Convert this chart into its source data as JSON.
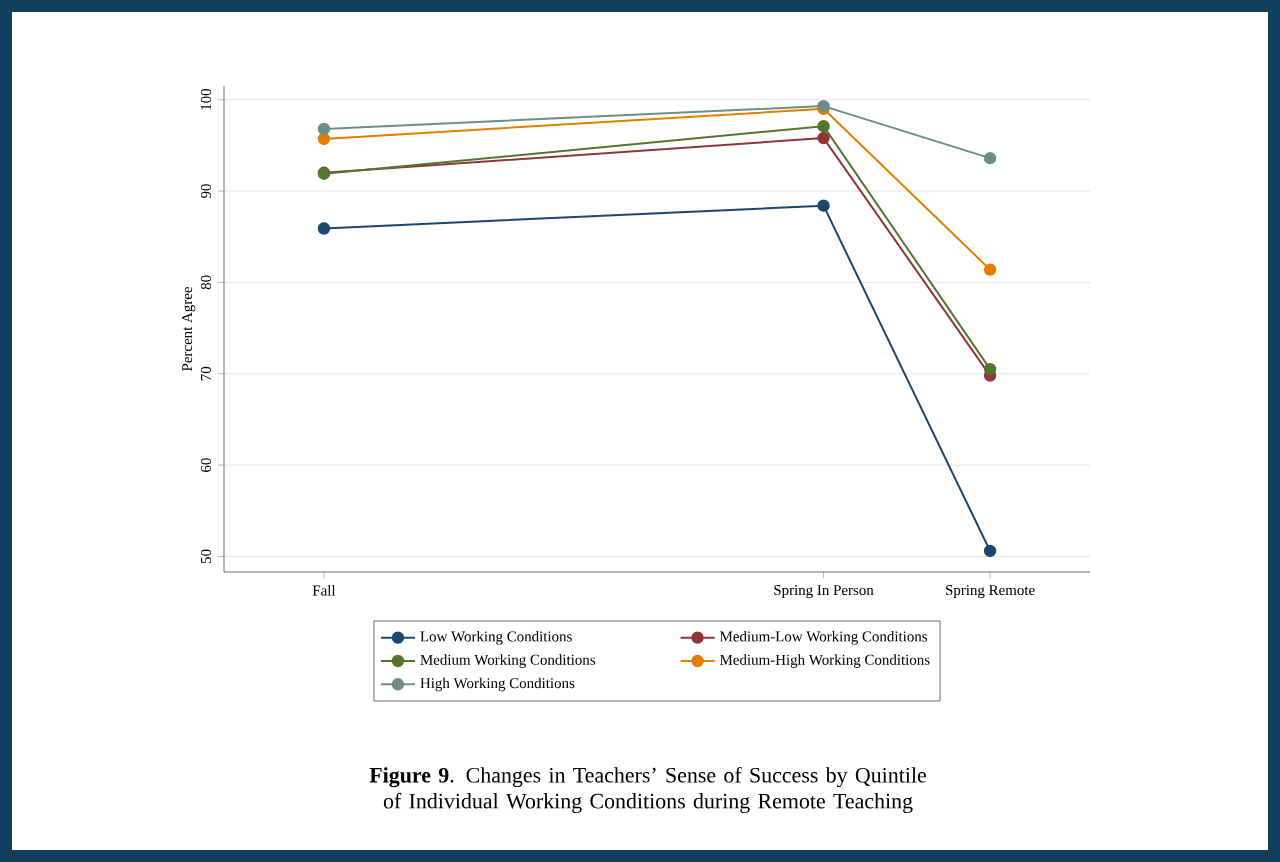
{
  "chart_data": {
    "type": "line",
    "ylabel": "Percent Agree",
    "categories": [
      "Fall",
      null,
      null,
      "Spring In Person",
      "Spring Remote"
    ],
    "ylim": [
      48.3,
      101.5
    ],
    "yticks": [
      50,
      60,
      70,
      80,
      90,
      100
    ],
    "grid": "y",
    "marker": "circle",
    "line_style": "solid",
    "legend": "bottom",
    "series": [
      {
        "name": "Low Working Conditions",
        "color": "#1a476f",
        "values": [
          85.9,
          null,
          null,
          88.4,
          50.6
        ]
      },
      {
        "name": "Medium-Low Working Conditions",
        "color": "#90353b",
        "values": [
          92.0,
          null,
          null,
          95.8,
          69.8
        ]
      },
      {
        "name": "Medium Working Conditions",
        "color": "#55752f",
        "values": [
          91.9,
          null,
          null,
          97.1,
          70.5
        ]
      },
      {
        "name": "Medium-High Working Conditions",
        "color": "#e37e00",
        "values": [
          95.7,
          null,
          null,
          99.0,
          81.4
        ]
      },
      {
        "name": "High Working Conditions",
        "color": "#6e8e84",
        "values": [
          96.8,
          null,
          null,
          99.3,
          93.6
        ]
      }
    ],
    "annotations": [
      "**Figure 9**. Changes in Teachers’ Sense of Success by Quintile of Individual Working Conditions during Remote Teaching"
    ]
  }
}
